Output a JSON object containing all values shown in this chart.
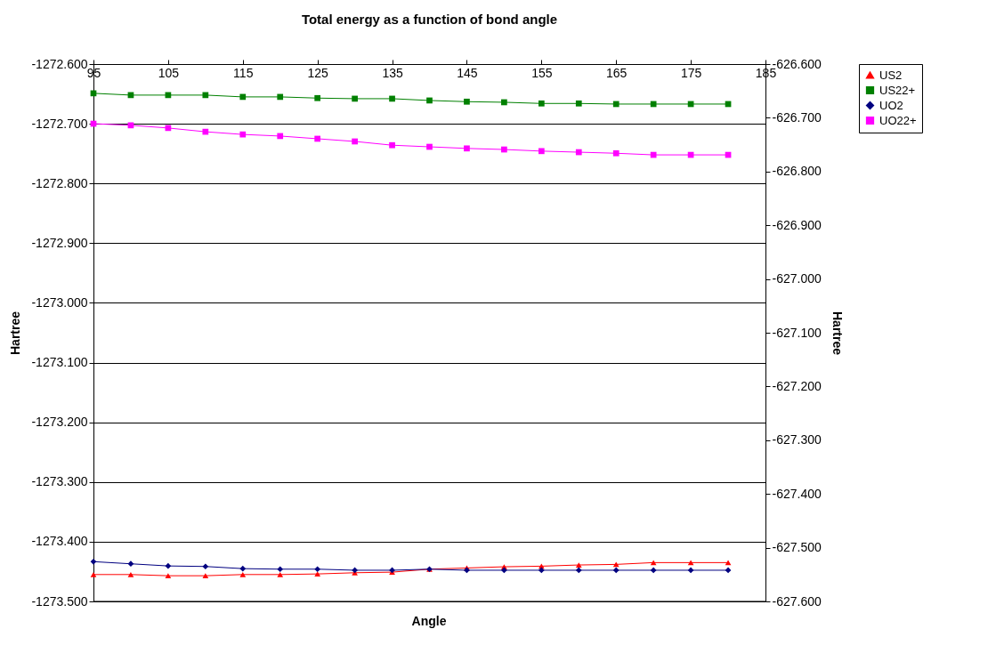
{
  "chart_data": {
    "type": "line",
    "title": "Total energy as a function of bond angle",
    "xlabel": "Angle",
    "ylabel": "Hartree",
    "y2label": "Hartree",
    "x": [
      95,
      100,
      105,
      110,
      115,
      120,
      125,
      130,
      135,
      140,
      145,
      150,
      155,
      160,
      165,
      170,
      175,
      180
    ],
    "xlim": [
      95,
      185
    ],
    "xticks": [
      95,
      105,
      115,
      125,
      135,
      145,
      155,
      165,
      175,
      185
    ],
    "ylim": [
      -1273.5,
      -1272.6
    ],
    "yticks": [
      {
        "value": -1273.5,
        "label": "-1273.500"
      },
      {
        "value": -1273.4,
        "label": "-1273.400"
      },
      {
        "value": -1273.3,
        "label": "-1273.300"
      },
      {
        "value": -1273.2,
        "label": "-1273.200"
      },
      {
        "value": -1273.1,
        "label": "-1273.100"
      },
      {
        "value": -1273.0,
        "label": "-1273.000"
      },
      {
        "value": -1272.9,
        "label": "-1272.900"
      },
      {
        "value": -1272.8,
        "label": "-1272.800"
      },
      {
        "value": -1272.7,
        "label": "-1272.700"
      },
      {
        "value": -1272.6,
        "label": "-1272.600"
      }
    ],
    "y2lim": [
      -627.6,
      -626.6
    ],
    "y2ticks": [
      {
        "value": -627.6,
        "label": "-627.600"
      },
      {
        "value": -627.5,
        "label": "-627.500"
      },
      {
        "value": -627.4,
        "label": "-627.400"
      },
      {
        "value": -627.3,
        "label": "-627.300"
      },
      {
        "value": -627.2,
        "label": "-627.200"
      },
      {
        "value": -627.1,
        "label": "-627.100"
      },
      {
        "value": -627.0,
        "label": "-627.000"
      },
      {
        "value": -626.9,
        "label": "-626.900"
      },
      {
        "value": -626.8,
        "label": "-626.800"
      },
      {
        "value": -626.7,
        "label": "-626.700"
      },
      {
        "value": -626.6,
        "label": "-626.600"
      }
    ],
    "grid": "y",
    "legend": "right",
    "series": [
      {
        "name": "US2",
        "color": "#ff0000",
        "marker": "triangle",
        "values": [
          -1273.455,
          -1273.455,
          -1273.457,
          -1273.457,
          -1273.455,
          -1273.455,
          -1273.454,
          -1273.452,
          -1273.451,
          -1273.446,
          -1273.444,
          -1273.442,
          -1273.441,
          -1273.439,
          -1273.438,
          -1273.435,
          -1273.435,
          -1273.435
        ]
      },
      {
        "name": "US22+",
        "color": "#008000",
        "marker": "square",
        "values": [
          -1272.649,
          -1272.652,
          -1272.652,
          -1272.652,
          -1272.655,
          -1272.655,
          -1272.657,
          -1272.658,
          -1272.658,
          -1272.661,
          -1272.663,
          -1272.664,
          -1272.666,
          -1272.666,
          -1272.667,
          -1272.667,
          -1272.667,
          -1272.667
        ]
      },
      {
        "name": "UO2",
        "color": "#000080",
        "marker": "diamond",
        "axis": "y2",
        "values": [
          -627.526,
          -627.53,
          -627.534,
          -627.535,
          -627.539,
          -627.54,
          -627.54,
          -627.542,
          -627.542,
          -627.54,
          -627.542,
          -627.542,
          -627.542,
          -627.542,
          -627.542,
          -627.542,
          -627.542,
          -627.542
        ]
      },
      {
        "name": "UO22+",
        "color": "#ff00ff",
        "marker": "square",
        "axis": "y2",
        "values": [
          -626.711,
          -626.714,
          -626.719,
          -626.726,
          -626.731,
          -626.734,
          -626.739,
          -626.744,
          -626.751,
          -626.754,
          -626.757,
          -626.759,
          -626.762,
          -626.764,
          -626.766,
          -626.769,
          -626.769,
          -626.769
        ]
      }
    ]
  }
}
